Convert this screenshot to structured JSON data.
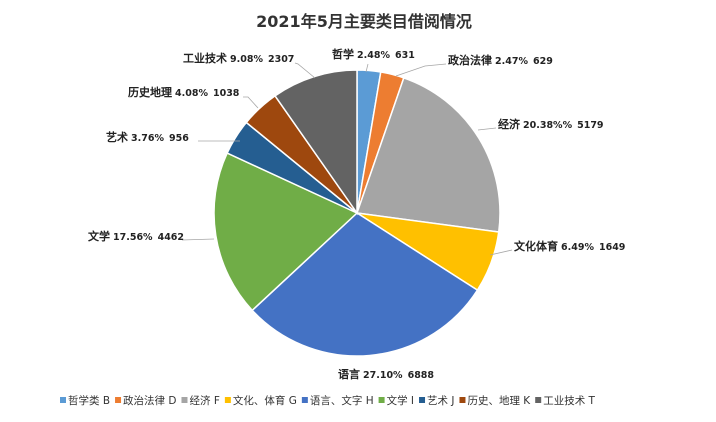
{
  "chart_data": {
    "type": "pie",
    "title": "2021年5月主要类目借阅情况",
    "slices": [
      {
        "name": "哲学",
        "percent": "2.48%",
        "value": 631,
        "color": "#5B9BD5"
      },
      {
        "name": "政治法律",
        "percent": "2.47%",
        "value": 629,
        "color": "#ED7D31"
      },
      {
        "name": "经济",
        "percent": "20.38%%",
        "value": 5179,
        "color": "#A5A5A5"
      },
      {
        "name": "文化体育",
        "percent": "6.49%",
        "value": 1649,
        "color": "#FFC000"
      },
      {
        "name": "语言",
        "percent": "27.10%",
        "value": 6888,
        "color": "#4472C4"
      },
      {
        "name": "文学",
        "percent": "17.56%",
        "value": 4462,
        "color": "#70AD47"
      },
      {
        "name": "艺术",
        "percent": "3.76%",
        "value": 956,
        "color": "#255E91"
      },
      {
        "name": "历史地理",
        "percent": "4.08%",
        "value": 1038,
        "color": "#9E480E"
      },
      {
        "name": "工业技术",
        "percent": "9.08%",
        "value": 2307,
        "color": "#636363"
      }
    ],
    "legend_position": "bottom",
    "legend": [
      "哲学类 B",
      "政治法律 D",
      "经济 F",
      "文化、体育 G",
      "语言、文字 H",
      "文学 I",
      "艺术 J",
      "历史、地理 K",
      "工业技术 T"
    ]
  }
}
